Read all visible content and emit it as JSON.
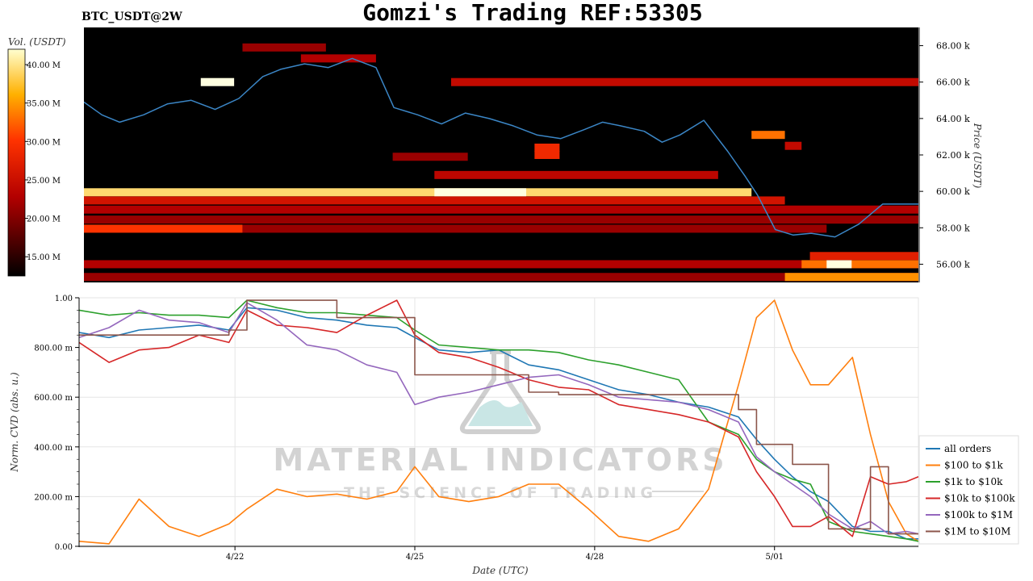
{
  "header": {
    "title": "Gomzi's Trading REF:53305",
    "symbol": "BTC_USDT@2W"
  },
  "watermark": {
    "brand": "MATERIAL INDICATORS",
    "tagline": "THE SCIENCE OF TRADING"
  },
  "colors": {
    "price_line": "#3b86c6",
    "heatmap_bg": "#000000",
    "series": [
      "#1f77b4",
      "#ff7f0e",
      "#2ca02c",
      "#d62728",
      "#9467bd",
      "#8c564b"
    ]
  },
  "chart_data": [
    {
      "type": "heatmap",
      "name": "orderbook-liquidity-heatmap",
      "title": "",
      "ylabel": "Price (USDT)",
      "ylim": [
        55000,
        69000
      ],
      "y_ticks": [
        56000,
        58000,
        60000,
        62000,
        64000,
        66000,
        68000
      ],
      "y_tick_labels": [
        "56.00 k",
        "58.00 k",
        "60.00 k",
        "62.00 k",
        "64.00 k",
        "66.00 k",
        "68.00 k"
      ],
      "colorbar": {
        "label": "Vol. (USDT)",
        "range": [
          12500000,
          42000000
        ],
        "ticks": [
          15000000,
          20000000,
          25000000,
          30000000,
          35000000,
          40000000
        ],
        "tick_labels": [
          "15.00 M",
          "20.00 M",
          "25.00 M",
          "30.00 M",
          "35.00 M",
          "40.00 M"
        ]
      },
      "liquidity_bands": [
        {
          "price": 59950,
          "start": 0.0,
          "end": 0.8,
          "intensity": 0.9
        },
        {
          "price": 59950,
          "start": 0.42,
          "end": 0.53,
          "intensity": 1.0
        },
        {
          "price": 59500,
          "start": 0.0,
          "end": 0.84,
          "intensity": 0.45
        },
        {
          "price": 59000,
          "start": 0.0,
          "end": 1.0,
          "intensity": 0.35
        },
        {
          "price": 58450,
          "start": 0.0,
          "end": 1.0,
          "intensity": 0.3
        },
        {
          "price": 57950,
          "start": 0.0,
          "end": 0.19,
          "intensity": 0.6
        },
        {
          "price": 57950,
          "start": 0.19,
          "end": 0.89,
          "intensity": 0.3
        },
        {
          "price": 56000,
          "start": 0.0,
          "end": 1.0,
          "intensity": 0.35
        },
        {
          "price": 55300,
          "start": 0.0,
          "end": 1.0,
          "intensity": 0.3
        },
        {
          "price": 55300,
          "start": 0.84,
          "end": 1.0,
          "intensity": 0.75
        },
        {
          "price": 56000,
          "start": 0.86,
          "end": 1.0,
          "intensity": 0.7
        },
        {
          "price": 56000,
          "start": 0.89,
          "end": 0.92,
          "intensity": 1.0
        },
        {
          "price": 56450,
          "start": 0.87,
          "end": 1.0,
          "intensity": 0.5
        },
        {
          "price": 66000,
          "start": 0.44,
          "end": 1.0,
          "intensity": 0.4
        },
        {
          "price": 66000,
          "start": 0.14,
          "end": 0.18,
          "intensity": 1.0
        },
        {
          "price": 60900,
          "start": 0.42,
          "end": 0.76,
          "intensity": 0.38
        },
        {
          "price": 61900,
          "start": 0.37,
          "end": 0.46,
          "intensity": 0.3
        },
        {
          "price": 63100,
          "start": 0.8,
          "end": 0.84,
          "intensity": 0.7
        },
        {
          "price": 62400,
          "start": 0.54,
          "end": 0.57,
          "intensity": 0.55
        },
        {
          "price": 62000,
          "start": 0.54,
          "end": 0.57,
          "intensity": 0.55
        },
        {
          "price": 67900,
          "start": 0.19,
          "end": 0.29,
          "intensity": 0.3
        },
        {
          "price": 67300,
          "start": 0.26,
          "end": 0.35,
          "intensity": 0.35
        },
        {
          "price": 62500,
          "start": 0.84,
          "end": 0.86,
          "intensity": 0.4
        }
      ]
    },
    {
      "type": "line",
      "name": "btc-price",
      "x_range": [
        0,
        14
      ],
      "y_unit": "USDT",
      "x": [
        0,
        0.3,
        0.6,
        1.0,
        1.4,
        1.8,
        2.2,
        2.6,
        3.0,
        3.3,
        3.7,
        4.1,
        4.5,
        4.9,
        5.2,
        5.6,
        6.0,
        6.4,
        6.8,
        7.2,
        7.6,
        8.0,
        8.4,
        8.7,
        9.0,
        9.4,
        9.7,
        10.0,
        10.4,
        10.8,
        11.1,
        11.3,
        11.6,
        11.9,
        12.2,
        12.6,
        13.0,
        13.4,
        13.7,
        14.0
      ],
      "y": [
        64900,
        64200,
        63800,
        64200,
        64800,
        65000,
        64500,
        65100,
        66300,
        66700,
        67000,
        66800,
        67300,
        66800,
        64600,
        64200,
        63700,
        64300,
        64000,
        63600,
        63100,
        62900,
        63400,
        63800,
        63600,
        63300,
        62700,
        63100,
        63900,
        62200,
        60800,
        59800,
        57900,
        57600,
        57700,
        57500,
        58200,
        59300,
        59300,
        59300
      ]
    },
    {
      "type": "line",
      "name": "normalized-cvd",
      "title": "",
      "xlabel": "Date (UTC)",
      "ylabel": "Norm. CVD (abs. u.)",
      "ylim": [
        0,
        1
      ],
      "x_range": [
        0,
        14
      ],
      "y_ticks": [
        0,
        0.2,
        0.4,
        0.6,
        0.8,
        1.0
      ],
      "y_tick_labels": [
        "0.00",
        "200.00 m",
        "400.00 m",
        "600.00 m",
        "800.00 m",
        "1.00"
      ],
      "x_ticks": [
        2.6,
        5.6,
        8.6,
        11.6
      ],
      "x_tick_labels": [
        "4/22",
        "4/25",
        "4/28",
        "5/01"
      ],
      "grid": true,
      "legend_position": "right",
      "x": [
        0,
        0.5,
        1.0,
        1.5,
        2.0,
        2.5,
        2.8,
        3.3,
        3.8,
        4.3,
        4.8,
        5.3,
        5.6,
        6.0,
        6.5,
        7.0,
        7.5,
        8.0,
        8.5,
        9.0,
        9.5,
        10.0,
        10.5,
        11.0,
        11.3,
        11.6,
        11.9,
        12.2,
        12.5,
        12.9,
        13.2,
        13.5,
        13.8,
        14.0
      ],
      "series": [
        {
          "name": "all orders",
          "values": [
            0.86,
            0.84,
            0.87,
            0.88,
            0.89,
            0.87,
            0.96,
            0.95,
            0.92,
            0.91,
            0.89,
            0.88,
            0.84,
            0.79,
            0.78,
            0.79,
            0.73,
            0.71,
            0.67,
            0.63,
            0.61,
            0.58,
            0.56,
            0.52,
            0.43,
            0.35,
            0.28,
            0.22,
            0.18,
            0.08,
            0.06,
            0.06,
            0.03,
            0.03
          ]
        },
        {
          "name": "$100 to $1k",
          "values": [
            0.02,
            0.01,
            0.19,
            0.08,
            0.04,
            0.09,
            0.15,
            0.23,
            0.2,
            0.21,
            0.19,
            0.22,
            0.32,
            0.2,
            0.18,
            0.2,
            0.25,
            0.25,
            0.15,
            0.04,
            0.02,
            0.07,
            0.23,
            0.65,
            0.92,
            0.99,
            0.79,
            0.65,
            0.65,
            0.76,
            0.45,
            0.18,
            0.05,
            0.02
          ]
        },
        {
          "name": "$1k to $10k",
          "values": [
            0.95,
            0.93,
            0.94,
            0.93,
            0.93,
            0.92,
            0.99,
            0.96,
            0.94,
            0.94,
            0.93,
            0.92,
            0.87,
            0.81,
            0.8,
            0.79,
            0.79,
            0.78,
            0.75,
            0.73,
            0.7,
            0.67,
            0.5,
            0.45,
            0.35,
            0.3,
            0.27,
            0.25,
            0.1,
            0.06,
            0.05,
            0.04,
            0.03,
            0.02
          ]
        },
        {
          "name": "$10k to $100k",
          "values": [
            0.82,
            0.74,
            0.79,
            0.8,
            0.85,
            0.82,
            0.95,
            0.89,
            0.88,
            0.86,
            0.93,
            0.99,
            0.85,
            0.78,
            0.76,
            0.72,
            0.67,
            0.64,
            0.63,
            0.57,
            0.55,
            0.53,
            0.5,
            0.44,
            0.3,
            0.2,
            0.08,
            0.08,
            0.12,
            0.04,
            0.28,
            0.25,
            0.26,
            0.28
          ]
        },
        {
          "name": "$100k to $1M",
          "values": [
            0.84,
            0.88,
            0.95,
            0.91,
            0.9,
            0.86,
            0.98,
            0.91,
            0.81,
            0.79,
            0.73,
            0.7,
            0.57,
            0.6,
            0.62,
            0.65,
            0.68,
            0.69,
            0.65,
            0.6,
            0.59,
            0.58,
            0.55,
            0.5,
            0.36,
            0.3,
            0.25,
            0.2,
            0.13,
            0.07,
            0.1,
            0.05,
            0.06,
            0.05
          ]
        },
        {
          "name": "$1M to $10M",
          "values": [
            0.85,
            0.85,
            0.85,
            0.85,
            0.85,
            0.87,
            0.99,
            0.99,
            0.99,
            0.92,
            0.92,
            0.92,
            0.69,
            0.69,
            0.69,
            0.69,
            0.62,
            0.61,
            0.61,
            0.61,
            0.61,
            0.61,
            0.61,
            0.55,
            0.41,
            0.41,
            0.33,
            0.33,
            0.07,
            0.07,
            0.32,
            0.05,
            0.05,
            0.05
          ]
        }
      ]
    }
  ]
}
